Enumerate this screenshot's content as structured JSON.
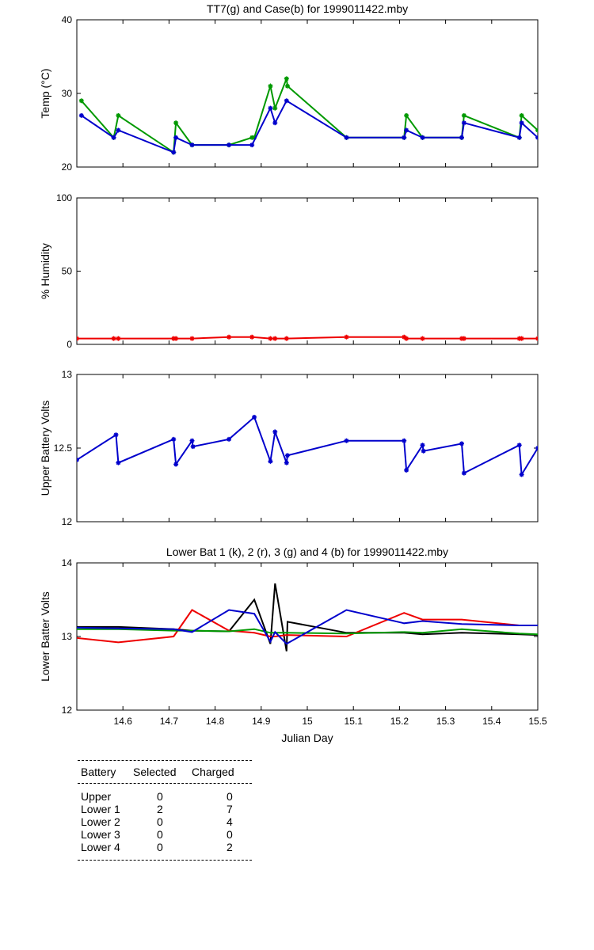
{
  "chart_data": [
    {
      "type": "line",
      "title": "TT7(g) and Case(b) for 1999011422.mby",
      "xlabel": "",
      "ylabel": "Temp  (°C)",
      "xlim": [
        14.5,
        15.5
      ],
      "ylim": [
        20,
        40
      ],
      "yticks": [
        20,
        30,
        40
      ],
      "markers": true,
      "series": [
        {
          "color": "#009900",
          "x": [
            14.51,
            14.58,
            14.59,
            14.71,
            14.715,
            14.75,
            14.83,
            14.88,
            14.885,
            14.92,
            14.93,
            14.955,
            14.957,
            15.085,
            15.21,
            15.215,
            15.25,
            15.335,
            15.34,
            15.46,
            15.465,
            15.5
          ],
          "y": [
            29,
            24,
            27,
            22,
            26,
            23,
            23,
            24,
            24,
            31,
            28,
            32,
            31,
            24,
            24,
            27,
            24,
            24,
            27,
            24,
            27,
            25
          ]
        },
        {
          "color": "#0000cc",
          "x": [
            14.51,
            14.58,
            14.59,
            14.71,
            14.715,
            14.75,
            14.83,
            14.88,
            14.92,
            14.93,
            14.955,
            15.085,
            15.21,
            15.215,
            15.25,
            15.335,
            15.34,
            15.46,
            15.465,
            15.5
          ],
          "y": [
            27,
            24,
            25,
            22,
            24,
            23,
            23,
            23,
            28,
            26,
            29,
            24,
            24,
            25,
            24,
            24,
            26,
            24,
            26,
            24
          ]
        }
      ]
    },
    {
      "type": "line",
      "title": "",
      "xlabel": "",
      "ylabel": "% Humidity",
      "xlim": [
        14.5,
        15.5
      ],
      "ylim": [
        0,
        100
      ],
      "yticks": [
        0,
        50,
        100
      ],
      "markers": true,
      "series": [
        {
          "color": "#ee0000",
          "x": [
            14.5,
            14.58,
            14.59,
            14.71,
            14.715,
            14.75,
            14.83,
            14.88,
            14.92,
            14.93,
            14.955,
            15.085,
            15.21,
            15.215,
            15.25,
            15.335,
            15.34,
            15.46,
            15.465,
            15.5
          ],
          "y": [
            4,
            4,
            4,
            4,
            4,
            4,
            5,
            5,
            4,
            4,
            4,
            5,
            5,
            4,
            4,
            4,
            4,
            4,
            4,
            4
          ]
        }
      ]
    },
    {
      "type": "line",
      "title": "",
      "xlabel": "",
      "ylabel": "Upper Battery Volts",
      "xlim": [
        14.5,
        15.5
      ],
      "ylim": [
        12,
        13
      ],
      "yticks": [
        12,
        12.5,
        13
      ],
      "markers": true,
      "series": [
        {
          "color": "#0000cc",
          "x": [
            14.5,
            14.585,
            14.59,
            14.71,
            14.715,
            14.75,
            14.752,
            14.83,
            14.885,
            14.92,
            14.93,
            14.955,
            14.957,
            15.085,
            15.21,
            15.215,
            15.25,
            15.252,
            15.335,
            15.34,
            15.46,
            15.465,
            15.5
          ],
          "y": [
            12.42,
            12.59,
            12.4,
            12.56,
            12.39,
            12.55,
            12.51,
            12.56,
            12.71,
            12.41,
            12.61,
            12.4,
            12.45,
            12.55,
            12.55,
            12.35,
            12.52,
            12.48,
            12.53,
            12.33,
            12.52,
            12.32,
            12.5
          ]
        }
      ]
    },
    {
      "type": "line",
      "title": "Lower Bat 1 (k), 2 (r), 3 (g) and 4 (b) for 1999011422.mby",
      "xlabel": "Julian Day",
      "ylabel": "Lower Batter Volts",
      "xlim": [
        14.5,
        15.5
      ],
      "ylim": [
        12,
        14
      ],
      "yticks": [
        12,
        13,
        14
      ],
      "xticks": [
        14.6,
        14.7,
        14.8,
        14.9,
        15,
        15.1,
        15.2,
        15.3,
        15.4,
        15.5
      ],
      "markers": false,
      "series": [
        {
          "color": "#000000",
          "x": [
            14.5,
            14.59,
            14.71,
            14.75,
            14.83,
            14.885,
            14.92,
            14.93,
            14.955,
            14.957,
            15.085,
            15.21,
            15.25,
            15.335,
            15.46,
            15.5
          ],
          "y": [
            13.13,
            13.13,
            13.1,
            13.08,
            13.07,
            13.5,
            12.9,
            13.72,
            12.8,
            13.2,
            13.05,
            13.05,
            13.03,
            13.05,
            13.03,
            13.02
          ]
        },
        {
          "color": "#ee0000",
          "x": [
            14.5,
            14.59,
            14.71,
            14.75,
            14.83,
            14.885,
            14.92,
            14.93,
            14.955,
            15.085,
            15.21,
            15.25,
            15.335,
            15.46,
            15.5
          ],
          "y": [
            12.98,
            12.92,
            13.0,
            13.36,
            13.08,
            13.05,
            13.0,
            13.0,
            13.02,
            13.0,
            13.32,
            13.23,
            13.23,
            13.15,
            13.15
          ]
        },
        {
          "color": "#009900",
          "x": [
            14.5,
            14.59,
            14.71,
            14.75,
            14.83,
            14.885,
            14.92,
            14.93,
            14.955,
            15.085,
            15.21,
            15.25,
            15.335,
            15.46,
            15.5
          ],
          "y": [
            13.1,
            13.1,
            13.08,
            13.08,
            13.07,
            13.1,
            13.05,
            13.05,
            13.05,
            13.04,
            13.06,
            13.05,
            13.1,
            13.04,
            13.03
          ]
        },
        {
          "color": "#0000cc",
          "x": [
            14.5,
            14.59,
            14.71,
            14.75,
            14.83,
            14.885,
            14.92,
            14.93,
            14.955,
            15.085,
            15.21,
            15.25,
            15.335,
            15.46,
            15.5
          ],
          "y": [
            13.12,
            13.11,
            13.1,
            13.06,
            13.36,
            13.31,
            12.93,
            13.06,
            12.9,
            13.36,
            13.18,
            13.21,
            13.17,
            13.15,
            13.15
          ]
        }
      ]
    }
  ],
  "table": {
    "headers": [
      "Battery",
      "Selected",
      "Charged"
    ],
    "rows": [
      [
        "Upper",
        "0",
        "0"
      ],
      [
        "Lower 1",
        "2",
        "7"
      ],
      [
        "Lower 2",
        "0",
        "4"
      ],
      [
        "Lower 3",
        "0",
        "0"
      ],
      [
        "Lower 4",
        "0",
        "2"
      ]
    ]
  }
}
